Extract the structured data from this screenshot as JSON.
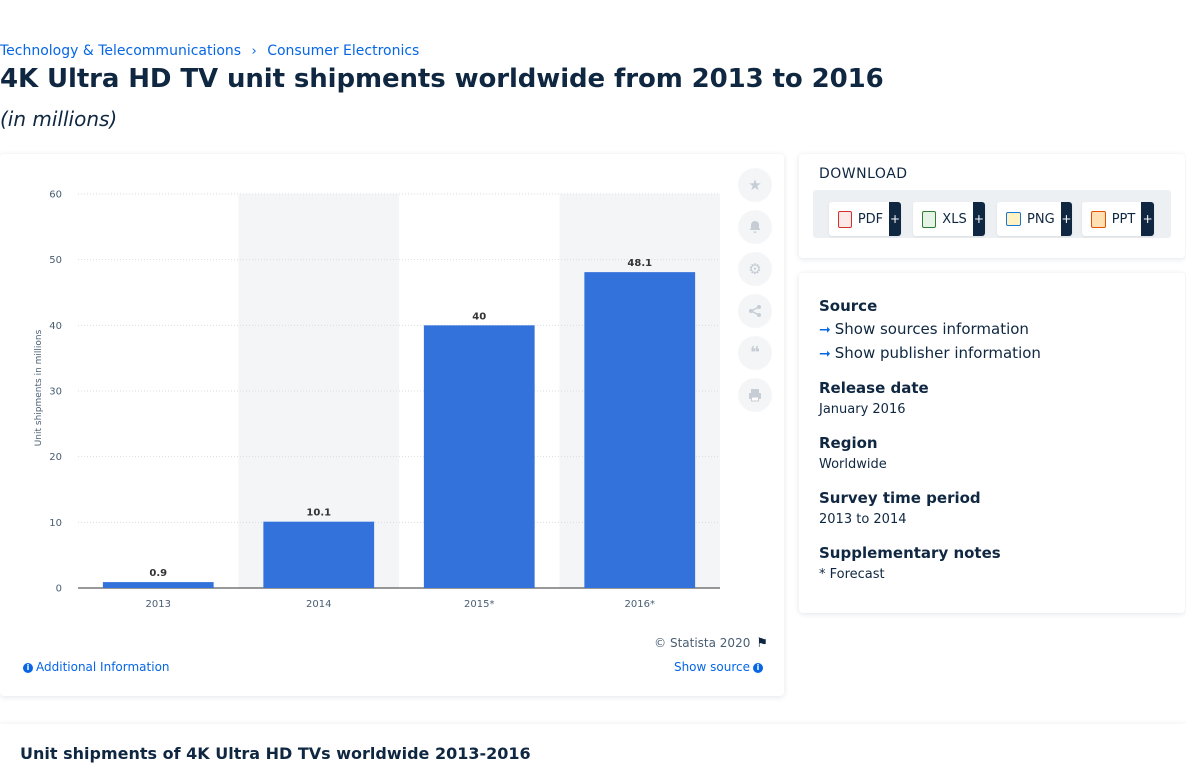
{
  "breadcrumb": {
    "items": [
      "Technology & Telecommunications",
      "Consumer Electronics"
    ],
    "separator": "›"
  },
  "title": "4K Ultra HD TV unit shipments worldwide from 2013 to 2016",
  "subtitle": "(in millions)",
  "chart_data": {
    "type": "bar",
    "categories": [
      "2013",
      "2014",
      "2015*",
      "2016*"
    ],
    "values": [
      0.9,
      10.1,
      40,
      48.1
    ],
    "data_labels": [
      "0.9",
      "10.1",
      "40",
      "48.1"
    ],
    "ylabel": "Unit shipments in millions",
    "ylim": [
      0,
      60
    ],
    "yticks": [
      "0",
      "10",
      "20",
      "30",
      "40",
      "50",
      "60"
    ],
    "grid": true,
    "bar_color": "#3371db",
    "legend": "none"
  },
  "chart_footer": {
    "copyright": "© Statista 2020",
    "additional_info": "Additional Information",
    "show_source": "Show source"
  },
  "tools": [
    "star-icon",
    "bell-icon",
    "gear-icon",
    "share-icon",
    "quote-icon",
    "print-icon"
  ],
  "download": {
    "title": "DOWNLOAD",
    "formats": [
      {
        "label": "PDF",
        "plus": "+"
      },
      {
        "label": "XLS",
        "plus": "+"
      },
      {
        "label": "PNG",
        "plus": "+"
      },
      {
        "label": "PPT",
        "plus": "+"
      }
    ]
  },
  "info": {
    "source_label": "Source",
    "show_sources": "Show sources information",
    "show_publisher": "Show publisher information",
    "release_label": "Release date",
    "release_value": "January 2016",
    "region_label": "Region",
    "region_value": "Worldwide",
    "survey_label": "Survey time period",
    "survey_value": "2013 to 2014",
    "notes_label": "Supplementary notes",
    "notes_value": "* Forecast"
  },
  "bottom": {
    "title": "Unit shipments of 4K Ultra HD TVs worldwide 2013-2016"
  },
  "colors": {
    "accent": "#0666e5",
    "navy": "#0f2741",
    "bar": "#3371db",
    "band": "#f4f5f7"
  }
}
